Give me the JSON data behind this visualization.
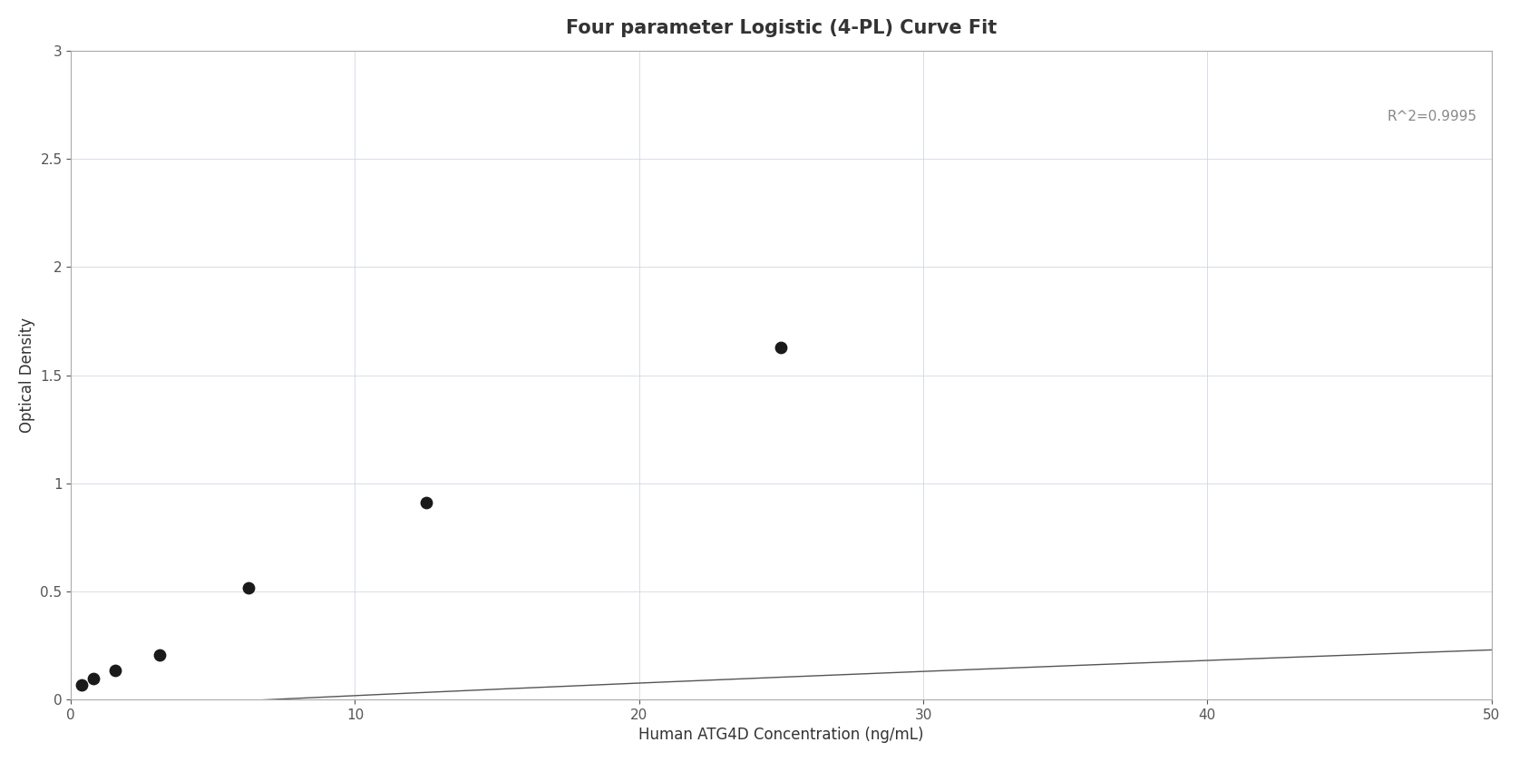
{
  "title": "Four parameter Logistic (4-PL) Curve Fit",
  "xlabel": "Human ATG4D Concentration (ng/mL)",
  "ylabel": "Optical Density",
  "r_squared_text": "R^2=0.9995",
  "data_x": [
    0.39,
    0.78,
    1.56,
    3.13,
    6.25,
    12.5,
    25.0
  ],
  "data_y": [
    0.068,
    0.095,
    0.135,
    0.207,
    0.515,
    0.91,
    1.628
  ],
  "xlim": [
    0,
    50
  ],
  "ylim": [
    0,
    3
  ],
  "xticks": [
    0,
    10,
    20,
    30,
    40,
    50
  ],
  "yticks": [
    0,
    0.5,
    1.0,
    1.5,
    2.0,
    2.5,
    3.0
  ],
  "grid_color": "#cdd5e0",
  "curve_color": "#555555",
  "dot_color": "#1a1a1a",
  "dot_size": 80,
  "background_color": "#ffffff",
  "title_fontsize": 15,
  "label_fontsize": 12,
  "tick_fontsize": 11,
  "annotation_fontsize": 11,
  "annotation_color": "#888888",
  "r2_x": 49.5,
  "r2_y": 2.73,
  "4pl_A": -0.05,
  "4pl_B": 0.92,
  "4pl_C": 800.0,
  "4pl_D": 3.8
}
